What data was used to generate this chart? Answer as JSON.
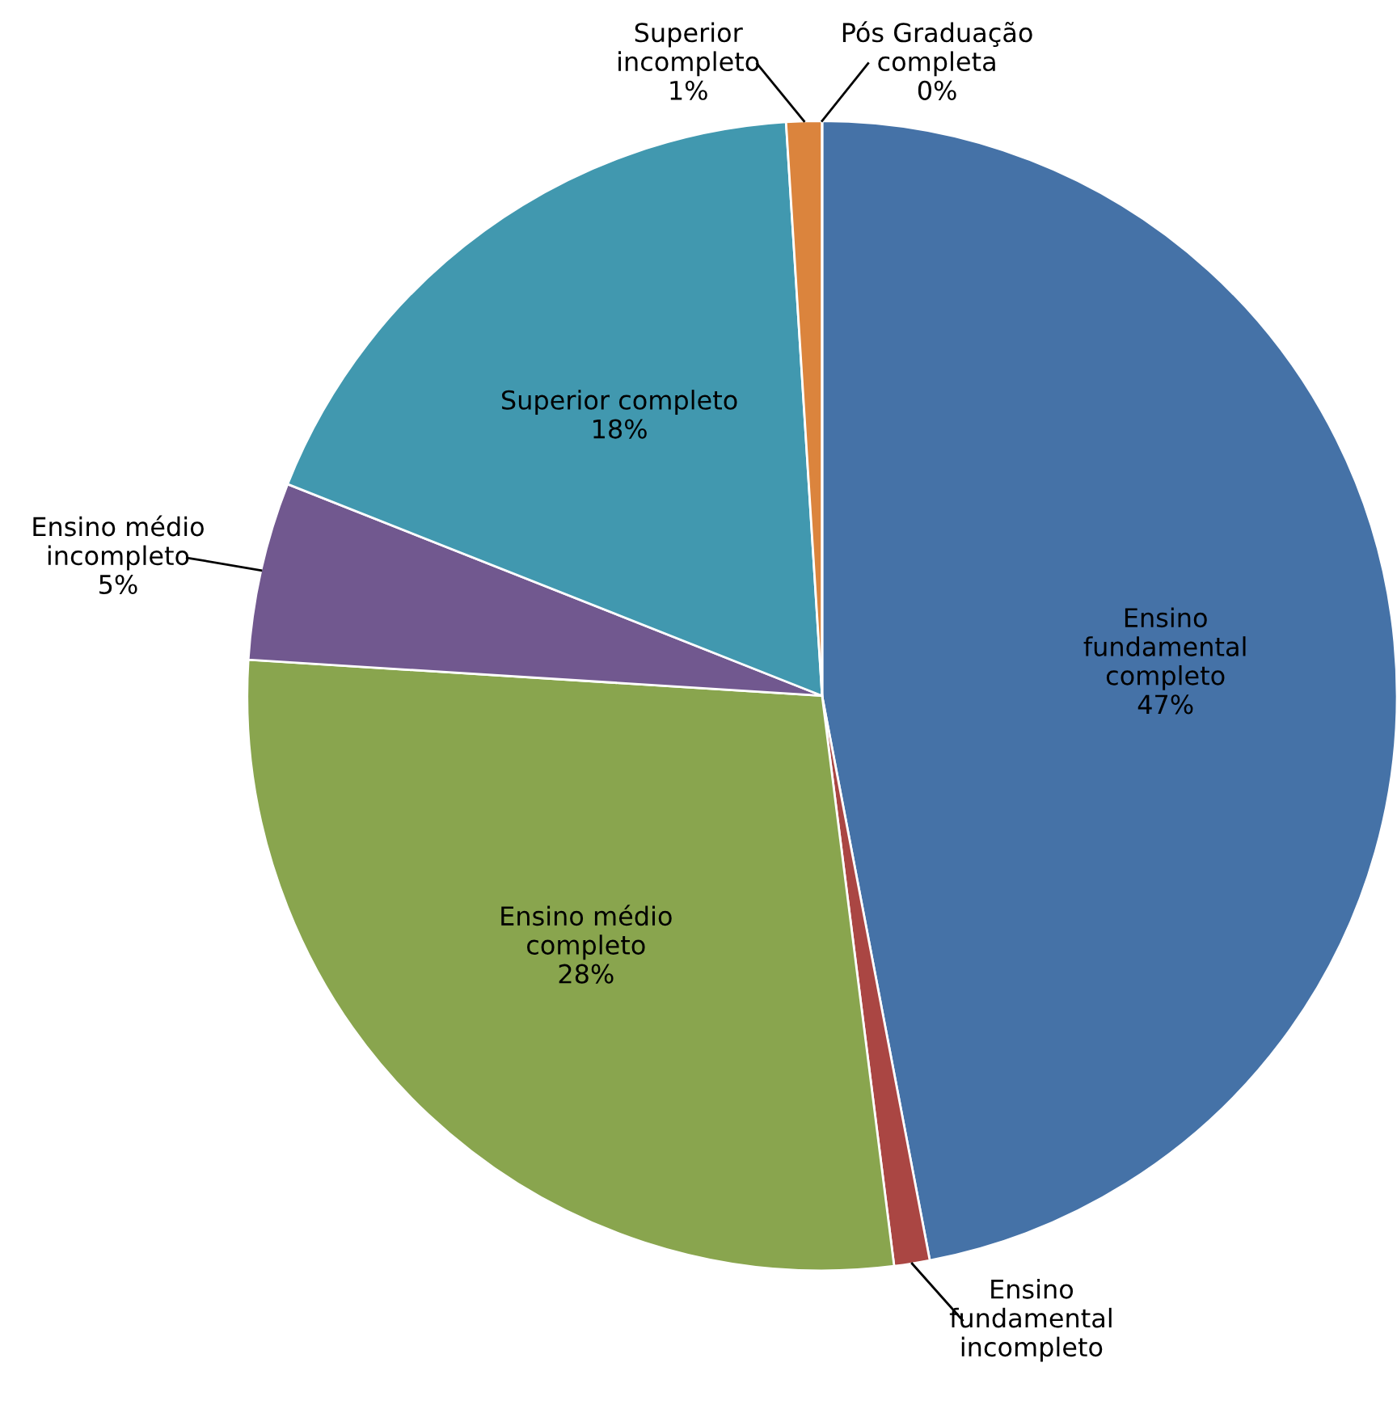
{
  "chart_data": {
    "type": "pie",
    "categories": [
      "Ensino\nfundamental\ncompleto",
      "Ensino\nfundamental\nincompleto",
      "Ensino médio\ncompleto",
      "Ensino médio\nincompleto",
      "Superior completo",
      "Superior\nincompleto",
      "Pós Graduação\ncompleta"
    ],
    "values": [
      47,
      1,
      28,
      5,
      18,
      1,
      0
    ],
    "value_labels": [
      "47%",
      null,
      "28%",
      "5%",
      "18%",
      "1%",
      "0%"
    ],
    "colors": [
      "#4572a7",
      "#aa4643",
      "#89a54e",
      "#71588f",
      "#4198af",
      "#db843d",
      "#93a9cf"
    ]
  }
}
